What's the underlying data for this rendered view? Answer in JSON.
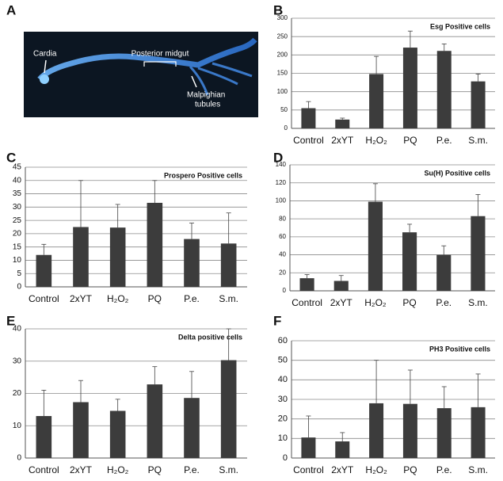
{
  "figure": {
    "panel_a": {
      "label": "A",
      "annotations": {
        "cardia": "Cardia",
        "posterior_midgut": "Posterior midgut",
        "malpighian": [
          "Malpighian",
          "tubules"
        ]
      }
    }
  },
  "chart_data": [
    {
      "type": "bar",
      "panel": "B",
      "title": "Esg Positive cells",
      "categories": [
        "Control",
        "2xYT",
        "H₂O₂",
        "PQ",
        "P.e.",
        "S.m."
      ],
      "values": [
        55,
        24,
        148,
        220,
        211,
        128
      ],
      "errors": [
        18,
        4,
        48,
        45,
        19,
        20
      ],
      "color": "#3c3c3c",
      "ylim": [
        0,
        300
      ],
      "yticks": [
        0,
        50,
        100,
        150,
        200,
        250,
        300
      ],
      "grid": true
    },
    {
      "type": "bar",
      "panel": "C",
      "title": "Prospero Positive cells",
      "categories": [
        "Control",
        "2xYT",
        "H₂O₂",
        "PQ",
        "P.e.",
        "S.m."
      ],
      "values": [
        12,
        22.5,
        22.3,
        31.6,
        18,
        16.3
      ],
      "errors": [
        4,
        17.5,
        8.7,
        8.4,
        6,
        11.5
      ],
      "color": "#3c3c3c",
      "ylim": [
        0,
        45
      ],
      "yticks": [
        0,
        5,
        10,
        15,
        20,
        25,
        30,
        35,
        40,
        45
      ],
      "grid": true
    },
    {
      "type": "bar",
      "panel": "D",
      "title": "Su(H) Positive cells",
      "categories": [
        "Control",
        "2xYT",
        "H₂O₂",
        "PQ",
        "P.e.",
        "S.m."
      ],
      "values": [
        14,
        11,
        99,
        65,
        40,
        83
      ],
      "errors": [
        4,
        6,
        20,
        9,
        10,
        24
      ],
      "color": "#3c3c3c",
      "ylim": [
        0,
        140
      ],
      "yticks": [
        0,
        20,
        40,
        60,
        80,
        100,
        120,
        140
      ],
      "grid": true
    },
    {
      "type": "bar",
      "panel": "E",
      "title": "Delta positive cells",
      "categories": [
        "Control",
        "2xYT",
        "H₂O₂",
        "PQ",
        "P.e.",
        "S.m."
      ],
      "values": [
        13,
        17.3,
        14.6,
        22.8,
        18.6,
        30.3
      ],
      "errors": [
        8,
        6.7,
        3.6,
        5.5,
        8.2,
        9.7
      ],
      "color": "#3c3c3c",
      "ylim": [
        0,
        40
      ],
      "yticks": [
        0,
        10,
        20,
        30,
        40
      ],
      "grid": true
    },
    {
      "type": "bar",
      "panel": "F",
      "title": "PH3 Positive cells",
      "categories": [
        "Control",
        "2xYT",
        "H₂O₂",
        "PQ",
        "P.e.",
        "S.m."
      ],
      "values": [
        10.5,
        8.5,
        28,
        27.7,
        25.5,
        26
      ],
      "errors": [
        11,
        4.5,
        22,
        17.3,
        11,
        17
      ],
      "color": "#3c3c3c",
      "ylim": [
        0,
        60
      ],
      "yticks": [
        0,
        10,
        20,
        30,
        40,
        50,
        60
      ],
      "grid": true
    }
  ]
}
